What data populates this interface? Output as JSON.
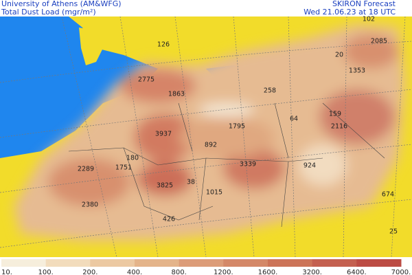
{
  "header": {
    "institution": "University of Athens (AM&WFG)",
    "title": "Total Dust Load (mgr/m²)",
    "model": "SKIRON Forecast",
    "date": "Wed 21.06.23 at 18 UTC"
  },
  "map_labels": [
    102,
    2085,
    126,
    20,
    1353,
    2775,
    1863,
    258,
    159,
    64,
    2116,
    1795,
    3937,
    892,
    180,
    3339,
    924,
    2289,
    1751,
    3825,
    38,
    1015,
    674,
    2380,
    426,
    25
  ],
  "colorbar": [
    "10.",
    "100.",
    "200.",
    "400.",
    "800.",
    "1200.",
    "1600.",
    "3200.",
    "6400.",
    "7000."
  ]
}
